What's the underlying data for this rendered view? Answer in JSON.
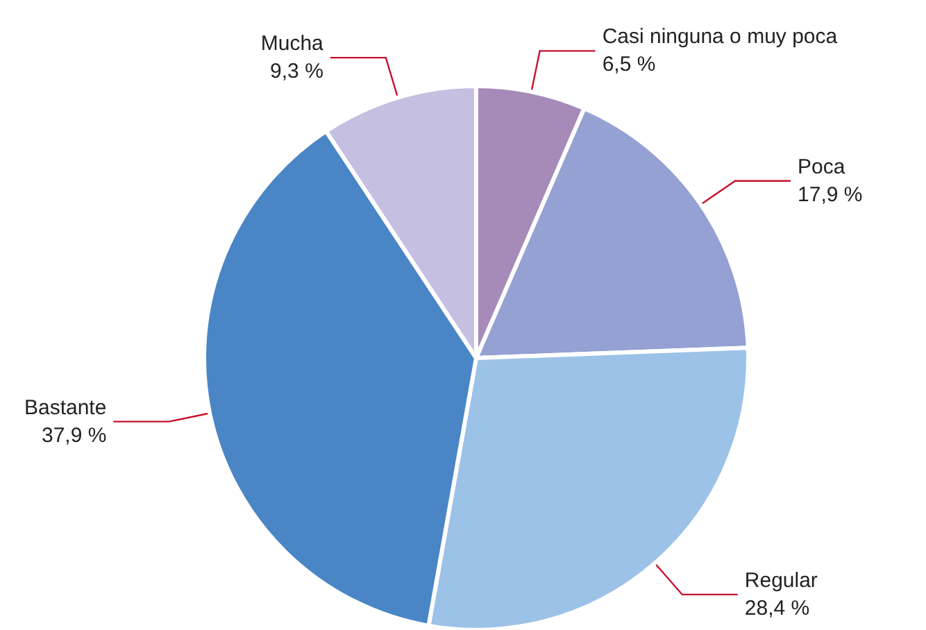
{
  "chart_data": {
    "type": "pie",
    "categories": [
      "Casi ninguna o muy poca",
      "Poca",
      "Regular",
      "Bastante",
      "Mucha"
    ],
    "values": [
      6.5,
      17.9,
      28.4,
      37.9,
      9.3
    ],
    "value_labels": [
      "6,5 %",
      "17,9 %",
      "28,4 %",
      "37,9 %",
      "9,3 %"
    ],
    "colors": [
      "#a68bb9",
      "#95a0d3",
      "#9dc2e7",
      "#4a86c6",
      "#c5c0e2"
    ],
    "legend": false
  }
}
